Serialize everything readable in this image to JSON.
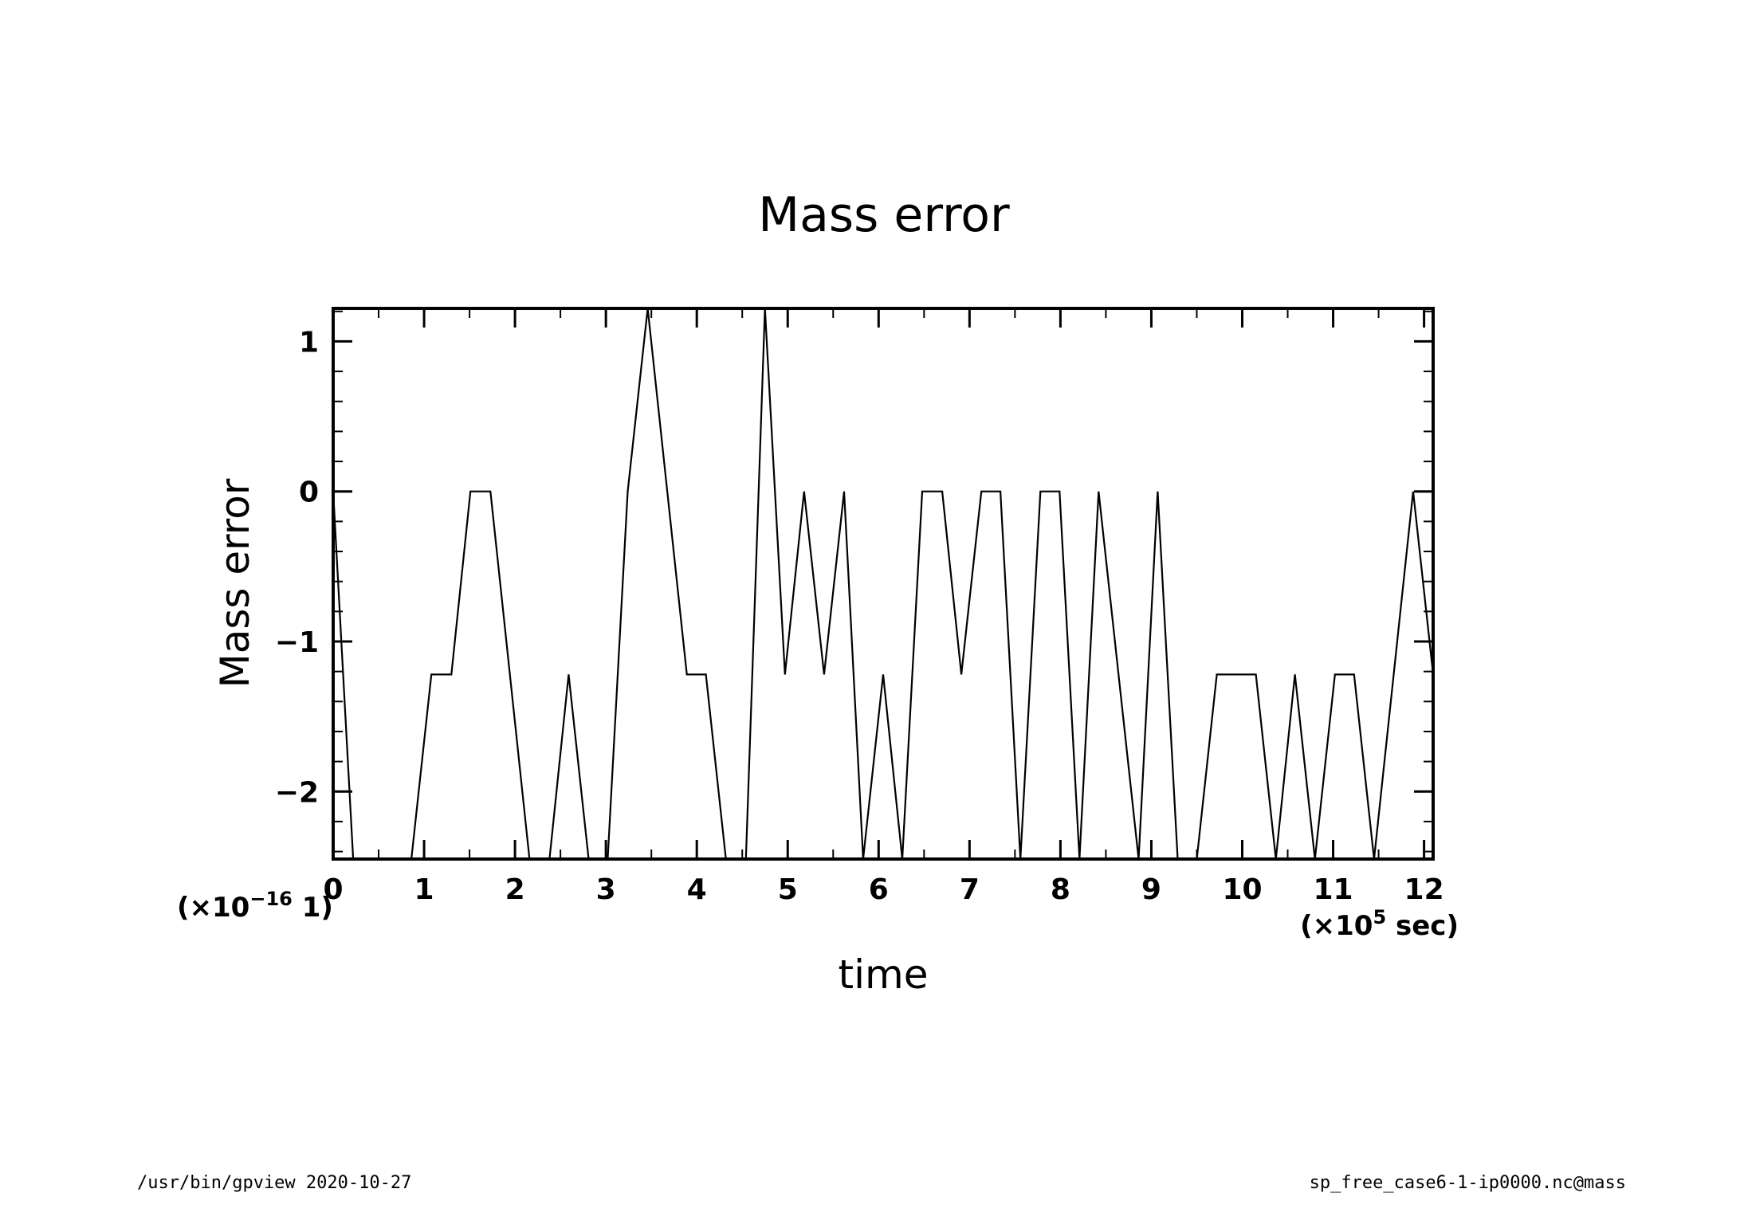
{
  "chart_data": {
    "type": "line",
    "title": "Mass error",
    "xlabel": "time",
    "ylabel": "Mass error",
    "x_unit_label": "(×10",
    "x_unit_exp": "5",
    "x_unit_tail": " sec)",
    "y_unit_label": "(×10",
    "y_unit_exp": "−16",
    "y_unit_tail": "  1)",
    "xlim": [
      0,
      12.1
    ],
    "ylim": [
      -2.45,
      1.22
    ],
    "x_ticks": [
      0,
      1,
      2,
      3,
      4,
      5,
      6,
      7,
      8,
      9,
      10,
      11,
      12
    ],
    "x_tick_labels": [
      "0",
      "1",
      "2",
      "3",
      "4",
      "5",
      "6",
      "7",
      "8",
      "9",
      "10",
      "11",
      "12"
    ],
    "y_ticks": [
      -2,
      -1,
      0,
      1
    ],
    "y_tick_labels": [
      "−2",
      "−1",
      "0",
      "1"
    ],
    "grid": false,
    "series": [
      {
        "color": "#000000",
        "x": [
          0,
          0.22,
          0.86,
          1.08,
          1.3,
          1.51,
          1.73,
          2.16,
          2.38,
          2.59,
          2.81,
          3.02,
          3.24,
          3.46,
          3.89,
          4.1,
          4.32,
          4.54,
          4.75,
          4.97,
          5.18,
          5.4,
          5.62,
          5.83,
          6.05,
          6.26,
          6.48,
          6.7,
          6.91,
          7.13,
          7.34,
          7.56,
          7.78,
          7.99,
          8.21,
          8.42,
          8.86,
          9.07,
          9.29,
          9.5,
          9.72,
          10.15,
          10.37,
          10.58,
          10.8,
          11.02,
          11.23,
          11.45,
          11.88,
          12.1
        ],
        "y": [
          0,
          -2.45,
          -2.45,
          -1.22,
          -1.22,
          0,
          0,
          -2.45,
          -2.45,
          -1.22,
          -2.45,
          -2.45,
          0,
          1.22,
          -1.22,
          -1.22,
          -2.45,
          -2.45,
          1.22,
          -1.22,
          0,
          -1.22,
          0,
          -2.45,
          -1.22,
          -2.45,
          0,
          0,
          -1.22,
          0,
          0,
          -2.45,
          0,
          0,
          -2.45,
          0,
          -2.45,
          0,
          -2.45,
          -2.45,
          -1.22,
          -1.22,
          -2.45,
          -1.22,
          -2.45,
          -1.22,
          -1.22,
          -2.45,
          0,
          -1.22
        ]
      }
    ]
  },
  "footer": {
    "left": "/usr/bin/gpview   2020-10-27",
    "right": "sp_free_case6-1-ip0000.nc@mass"
  }
}
